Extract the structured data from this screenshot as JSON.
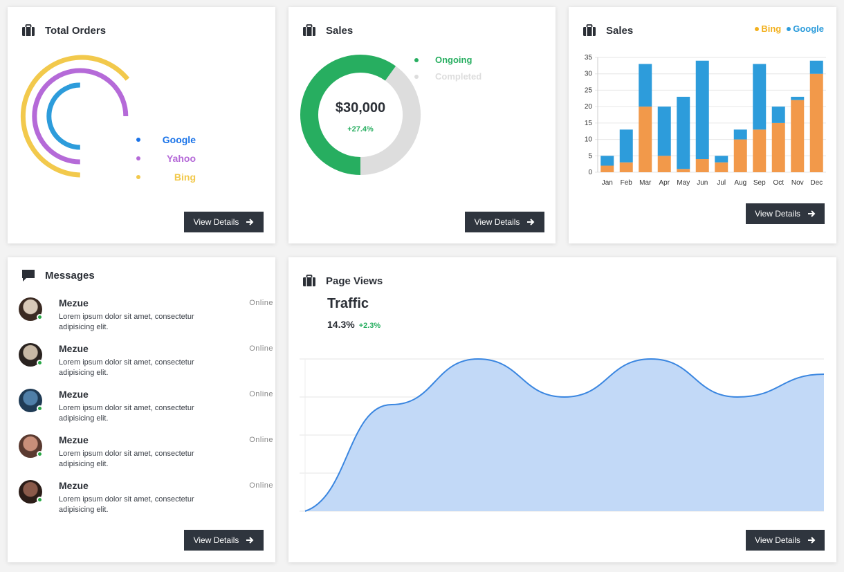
{
  "icons": {
    "briefcase": "briefcase-icon",
    "chat": "chat-icon",
    "arrow": "arrow-right-icon"
  },
  "colors": {
    "google": "#2d9cdb",
    "yahoo": "#b56ad8",
    "bing": "#f2c94c",
    "ongoing": "#27ae60",
    "completed": "#dddddd",
    "bar_bing": "#f2994a",
    "bar_google": "#2d9cdb",
    "area_fill": "#c2d9f7",
    "area_line": "#3a86e0",
    "button_bg": "#2f353e"
  },
  "total_orders": {
    "title": "Total Orders",
    "legend": [
      {
        "label": "Google",
        "color": "#1a73e8"
      },
      {
        "label": "Yahoo",
        "color": "#b56ad8"
      },
      {
        "label": "Bing",
        "color": "#f2c94c"
      }
    ],
    "button": "View Details"
  },
  "sales_donut": {
    "title": "Sales",
    "amount": "$30,000",
    "change": "+27.4%",
    "legend": [
      {
        "label": "Ongoing",
        "color": "#27ae60"
      },
      {
        "label": "Completed",
        "color": "#dddddd"
      }
    ],
    "button": "View Details"
  },
  "sales_bar": {
    "title": "Sales",
    "legend_bing": "Bing",
    "legend_google": "Google",
    "button": "View Details"
  },
  "messages": {
    "title": "Messages",
    "items": [
      {
        "name": "Mezue",
        "status": "Online",
        "text": "Lorem ipsum dolor sit amet, consectetur adipisicing elit."
      },
      {
        "name": "Mezue",
        "status": "Online",
        "text": "Lorem ipsum dolor sit amet, consectetur adipisicing elit."
      },
      {
        "name": "Mezue",
        "status": "Online",
        "text": "Lorem ipsum dolor sit amet, consectetur adipisicing elit."
      },
      {
        "name": "Mezue",
        "status": "Online",
        "text": "Lorem ipsum dolor sit amet, consectetur adipisicing elit."
      },
      {
        "name": "Mezue",
        "status": "Online",
        "text": "Lorem ipsum dolor sit amet, consectetur adipisicing elit."
      }
    ],
    "button": "View Details"
  },
  "page_views": {
    "title": "Page Views",
    "heading": "Traffic",
    "value": "14.3%",
    "change": "+2.3%",
    "button": "View Details"
  },
  "chart_data": [
    {
      "type": "pie",
      "chart": "total-orders-radial",
      "labels": [
        "Google",
        "Yahoo",
        "Bing"
      ],
      "values": [
        50,
        75,
        75
      ]
    },
    {
      "type": "pie",
      "chart": "sales-donut",
      "labels": [
        "Ongoing",
        "Completed"
      ],
      "values": [
        60,
        40
      ]
    },
    {
      "type": "bar",
      "stacked": true,
      "categories": [
        "Jan",
        "Feb",
        "Mar",
        "Apr",
        "May",
        "Jun",
        "Jul",
        "Aug",
        "Sep",
        "Oct",
        "Nov",
        "Dec"
      ],
      "series": [
        {
          "name": "Bing",
          "values": [
            2,
            3,
            20,
            5,
            1,
            4,
            3,
            10,
            13,
            15,
            22,
            30
          ]
        },
        {
          "name": "Google",
          "values": [
            3,
            10,
            13,
            15,
            22,
            30,
            2,
            3,
            20,
            5,
            1,
            4
          ]
        }
      ],
      "ylim": [
        0,
        35
      ],
      "yticks": [
        0,
        5,
        10,
        15,
        20,
        25,
        30,
        35
      ],
      "grid": true,
      "legend": "top-right"
    },
    {
      "type": "area",
      "x": [
        0,
        1,
        2,
        3,
        4,
        5,
        6
      ],
      "values": [
        0,
        28,
        40,
        30,
        40,
        30,
        36
      ],
      "ylim": [
        0,
        40
      ],
      "grid": true
    }
  ]
}
